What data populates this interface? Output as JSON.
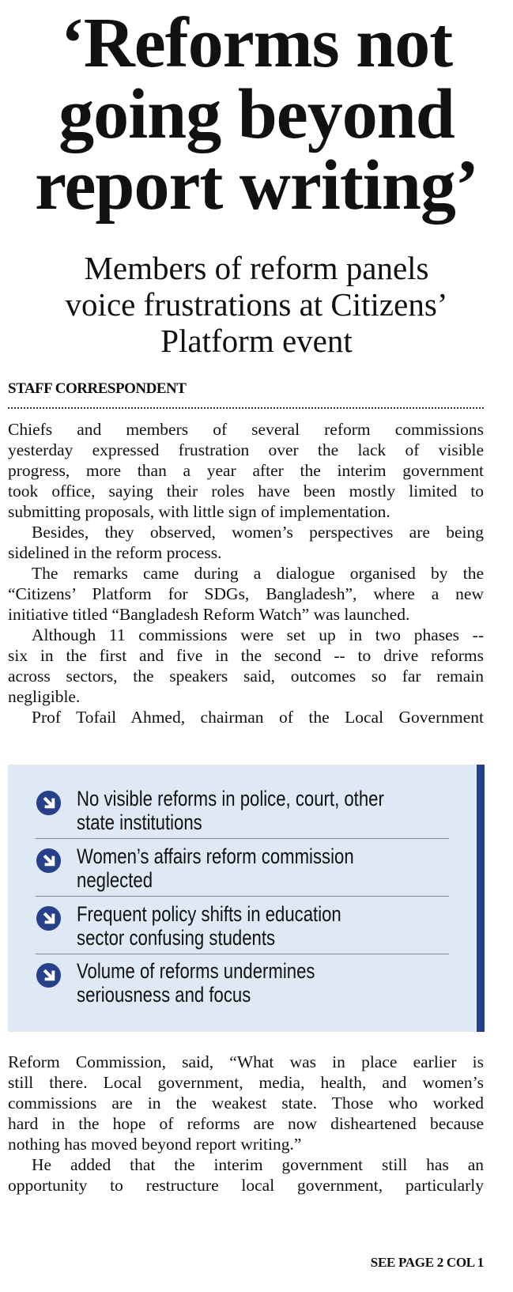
{
  "headline": [
    "‘Reforms not",
    "going beyond",
    "report writing’"
  ],
  "subheadline": [
    "Members of reform panels",
    "voice frustrations at Citizens’",
    "Platform event"
  ],
  "byline": "STAFF CORRESPONDENT",
  "body_top": [
    {
      "lines": [
        "Chiefs and members of several reform commissions",
        "yesterday expressed frustration over the lack of visible",
        "progress, more than a year after the interim government",
        "took office, saying their roles have been mostly limited to",
        "submitting proposals, with little sign of implementation."
      ],
      "indent": false
    },
    {
      "lines": [
        "Besides, they observed, women’s perspectives are being",
        "sidelined in the reform process."
      ],
      "indent": true
    },
    {
      "lines": [
        "The remarks came during a dialogue organised by the",
        "“Citizens’ Platform for SDGs, Bangladesh”, where a new",
        "initiative titled “Bangladesh Reform Watch” was launched."
      ],
      "indent": true
    },
    {
      "lines": [
        "Although 11 commissions were set up in two phases --",
        "six in the first and five in the second -- to drive reforms",
        "across sectors, the speakers said, outcomes so far remain",
        "negligible."
      ],
      "indent": true
    },
    {
      "lines": [
        "Prof Tofail Ahmed, chairman of the Local Government"
      ],
      "indent": true,
      "continues": true
    }
  ],
  "highlights": {
    "icon": "circle-arrow-icon",
    "accent_color": "#27408b",
    "background_color": "#dfe8f5",
    "items": [
      [
        "No visible reforms in police, court, other",
        "state institutions"
      ],
      [
        "Women’s affairs reform commission",
        "neglected"
      ],
      [
        "Frequent policy shifts in education",
        "sector confusing students"
      ],
      [
        "Volume of reforms undermines",
        "seriousness and focus"
      ]
    ]
  },
  "body_bottom": [
    {
      "lines": [
        "Reform Commission, said, “What was in place earlier is",
        "still there. Local government, media, health, and women’s",
        "commissions are in the weakest state. Those who worked",
        "hard in the hope of reforms are now disheartened because",
        "nothing has moved beyond report writing.”"
      ],
      "indent": false
    },
    {
      "lines": [
        "He added that the interim government still has an",
        "opportunity to restructure local government, particularly"
      ],
      "indent": true,
      "continues": true
    }
  ],
  "jump_line": "SEE PAGE 2 COL 1"
}
